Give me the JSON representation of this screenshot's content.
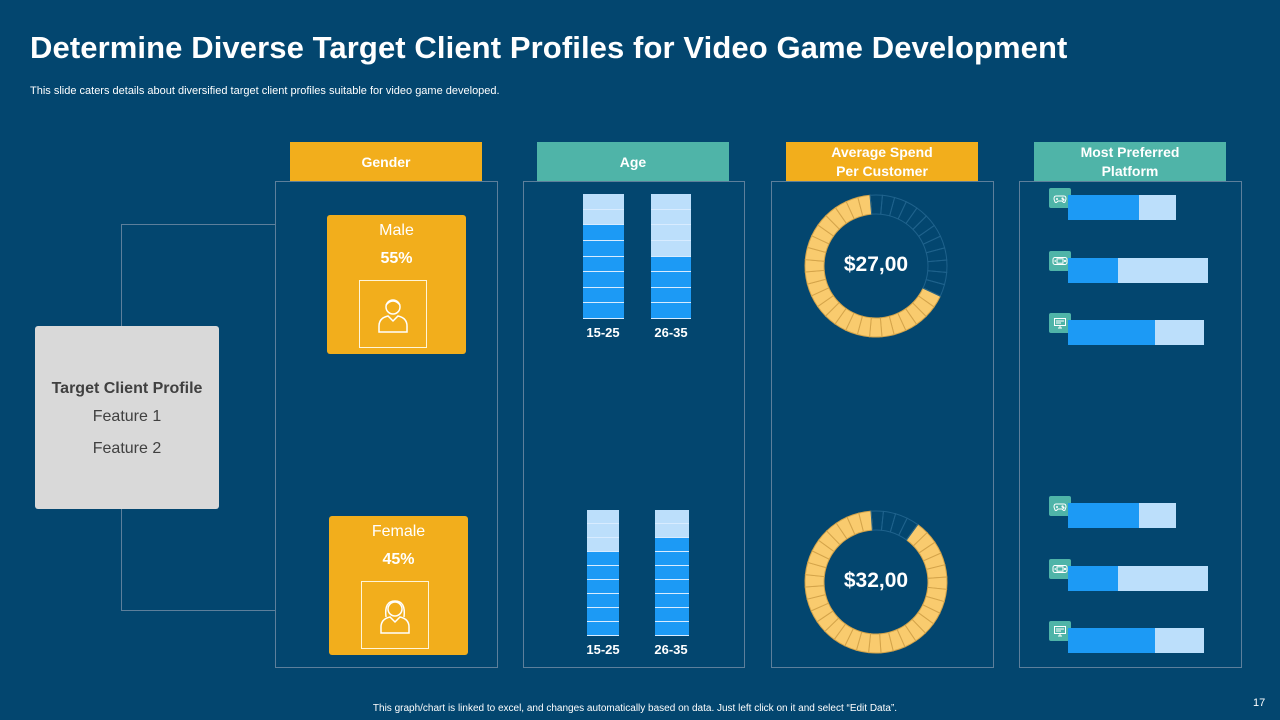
{
  "slide": {
    "title": "Determine Diverse Target Client Profiles for Video Game Development",
    "subtitle": "This slide caters details about diversified target client profiles suitable for video game developed.",
    "footnote": "This graph/chart is linked to excel, and changes automatically based on data. Just left click on it and select “Edit Data”.",
    "page_number": "17"
  },
  "profile": {
    "title": "Target Client Profile",
    "feature_1": "Feature 1",
    "feature_2": "Feature 2"
  },
  "headers": {
    "gender": "Gender",
    "age": "Age",
    "spend": "Average Spend\nPer Customer",
    "platform": "Most Preferred\nPlatform"
  },
  "gender": {
    "male": {
      "label": "Male",
      "percent": "55%",
      "icon": "male-user-icon"
    },
    "female": {
      "label": "Female",
      "percent": "45%",
      "icon": "female-user-icon"
    }
  },
  "age": {
    "top": [
      {
        "label": "15-25",
        "filled": 6,
        "total": 8
      },
      {
        "label": "26-35",
        "filled": 4,
        "total": 8
      }
    ],
    "bottom": [
      {
        "label": "15-25",
        "filled": 6,
        "total": 9
      },
      {
        "label": "26-35",
        "filled": 7,
        "total": 9
      }
    ]
  },
  "spend": {
    "top": {
      "amount": "$27,00",
      "filled_fraction": 0.68
    },
    "bottom": {
      "amount": "$32,00",
      "filled_fraction": 0.9
    }
  },
  "platforms": {
    "top": [
      {
        "icon": "gamepad-icon",
        "value": 0.66
      },
      {
        "icon": "handheld-console-icon",
        "value": 0.36
      },
      {
        "icon": "pc-monitor-icon",
        "value": 0.64
      }
    ],
    "bottom": [
      {
        "icon": "gamepad-icon",
        "value": 0.66
      },
      {
        "icon": "handheld-console-icon",
        "value": 0.36
      },
      {
        "icon": "pc-monitor-icon",
        "value": 0.64
      }
    ]
  },
  "colors": {
    "background": "#03466f",
    "gold": "#f2ae1c",
    "teal": "#4fb4a8",
    "bar_fill": "#1c9af5",
    "bar_empty": "#bcdffb",
    "donut_fill": "#f9cb6e"
  }
}
